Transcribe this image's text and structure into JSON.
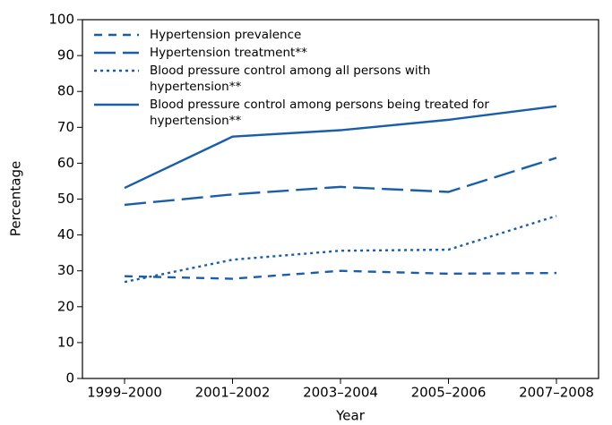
{
  "chart_data": {
    "type": "line",
    "x_label": "Year",
    "y_label": "Percentage",
    "categories": [
      "1999–2000",
      "2001–2002",
      "2003–2004",
      "2005–2006",
      "2007–2008"
    ],
    "series": [
      {
        "name": "Hypertension prevalence",
        "color": "#1b5ea8",
        "line_style": "short-dash",
        "values": [
          28.5,
          27.8,
          30.0,
          29.2,
          29.4
        ]
      },
      {
        "name": "Hypertension treatment**",
        "color": "#1b5ea8",
        "line_style": "long-dash",
        "values": [
          48.4,
          51.3,
          53.4,
          52.0,
          61.5
        ]
      },
      {
        "name": "Blood pressure control among all persons with hypertension**",
        "color": "#1b5ea8",
        "line_style": "dotted",
        "values": [
          26.9,
          33.1,
          35.6,
          35.9,
          45.3
        ]
      },
      {
        "name": "Blood pressure control among persons being treated for hypertension**",
        "color": "#1b5ea8",
        "line_style": "solid",
        "values": [
          53.1,
          67.4,
          69.2,
          72.1,
          75.9
        ]
      }
    ],
    "ylim": [
      0,
      100
    ],
    "yticks": [
      0,
      10,
      20,
      30,
      40,
      50,
      60,
      70,
      80,
      90,
      100
    ],
    "legend": "upper-left"
  }
}
